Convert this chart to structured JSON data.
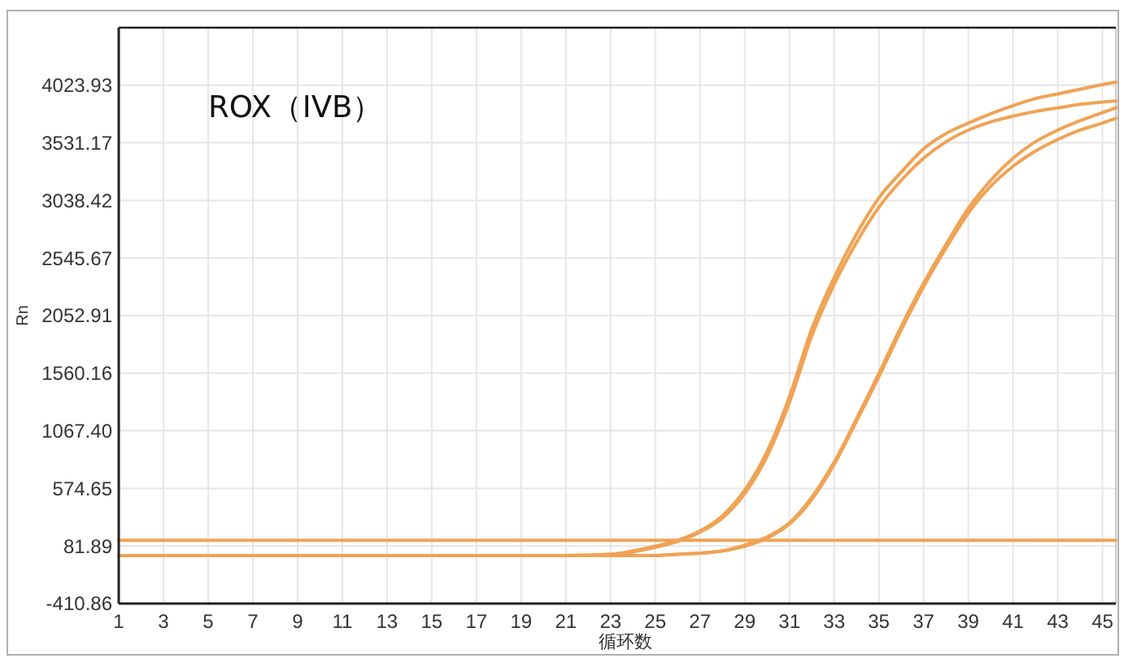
{
  "chart_data": {
    "type": "line",
    "title": "ROX（IVB）",
    "xlabel": "循环数",
    "ylabel": "Rn",
    "xlim": [
      1,
      45.6
    ],
    "xticks": [
      1,
      3,
      5,
      7,
      9,
      11,
      13,
      15,
      17,
      19,
      21,
      23,
      25,
      27,
      29,
      31,
      33,
      35,
      37,
      39,
      41,
      43,
      45
    ],
    "ylim": [
      -410.86,
      4516.68
    ],
    "yticks": [
      -410.86,
      81.89,
      574.65,
      {
        "value": 1067.4,
        "label": "1067.40"
      },
      1560.16,
      2052.91,
      2545.67,
      3038.42,
      3531.17,
      4023.93
    ],
    "grid": true,
    "series": [
      {
        "color": "#f0a354",
        "x": [
          1,
          21,
          23,
          24,
          25,
          26,
          27,
          28,
          29,
          30,
          31,
          32,
          33,
          34,
          35,
          36,
          37,
          38,
          39,
          40,
          41,
          42,
          43,
          44,
          45,
          45.6
        ],
        "values": [
          0,
          0,
          10,
          40,
          80,
          130,
          210,
          340,
          560,
          890,
          1360,
          1940,
          2380,
          2750,
          3060,
          3280,
          3480,
          3610,
          3700,
          3780,
          3850,
          3910,
          3950,
          3990,
          4030,
          4050
        ]
      },
      {
        "color": "#f0a354",
        "x": [
          1,
          21,
          23,
          24,
          25,
          26,
          27,
          28,
          29,
          30,
          31,
          32,
          33,
          34,
          35,
          36,
          37,
          38,
          39,
          40,
          41,
          42,
          43,
          44,
          45,
          45.6
        ],
        "values": [
          0,
          0,
          10,
          30,
          70,
          120,
          200,
          320,
          530,
          850,
          1310,
          1880,
          2320,
          2680,
          2980,
          3210,
          3400,
          3540,
          3640,
          3710,
          3760,
          3800,
          3830,
          3860,
          3880,
          3890
        ]
      },
      {
        "color": "#f0a354",
        "x": [
          1,
          25,
          26,
          27,
          28,
          29,
          30,
          31,
          32,
          33,
          34,
          35,
          36,
          37,
          38,
          39,
          40,
          41,
          42,
          43,
          44,
          45,
          45.6
        ],
        "values": [
          0,
          0,
          10,
          20,
          40,
          90,
          160,
          280,
          500,
          800,
          1170,
          1560,
          1960,
          2330,
          2660,
          2970,
          3210,
          3400,
          3540,
          3640,
          3720,
          3790,
          3830
        ]
      },
      {
        "color": "#f0a354",
        "x": [
          1,
          25,
          26,
          27,
          28,
          29,
          30,
          31,
          32,
          33,
          34,
          35,
          36,
          37,
          38,
          39,
          40,
          41,
          42,
          43,
          44,
          45,
          45.6
        ],
        "values": [
          0,
          0,
          10,
          20,
          40,
          80,
          150,
          270,
          480,
          780,
          1150,
          1530,
          1930,
          2300,
          2630,
          2930,
          3160,
          3330,
          3460,
          3560,
          3640,
          3700,
          3740
        ]
      },
      {
        "color": "#f0a354",
        "x": [
          1,
          45.6
        ],
        "values": [
          130,
          130
        ]
      }
    ]
  }
}
